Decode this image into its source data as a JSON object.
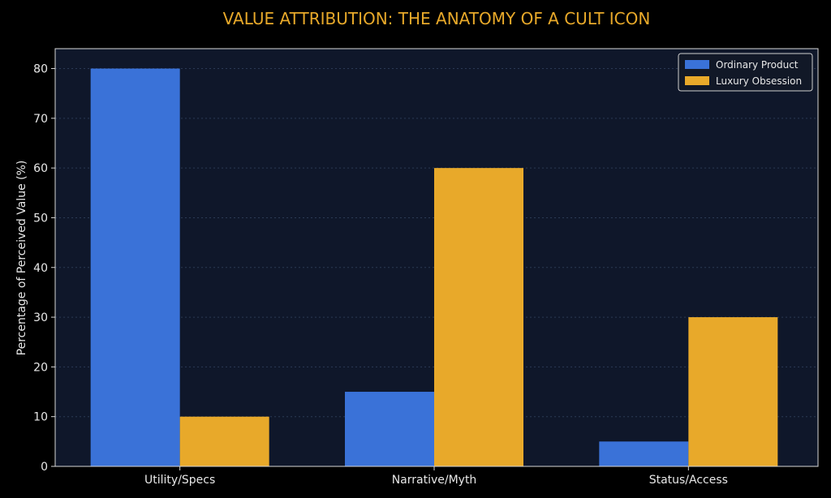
{
  "chart_data": {
    "type": "bar",
    "title": "VALUE ATTRIBUTION: THE ANATOMY OF A CULT ICON",
    "ylabel": "Percentage of Perceived Value (%)",
    "xlabel": "",
    "categories": [
      "Utility/Specs",
      "Narrative/Myth",
      "Status/Access"
    ],
    "series": [
      {
        "name": "Ordinary Product",
        "values": [
          80,
          15,
          5
        ],
        "color": "#3a72d8"
      },
      {
        "name": "Luxury Obsession",
        "values": [
          10,
          60,
          30
        ],
        "color": "#e8a92a"
      }
    ],
    "ylim": [
      0,
      84
    ],
    "yticks": [
      0,
      10,
      20,
      30,
      40,
      50,
      60,
      70,
      80
    ],
    "grid": true,
    "legend_position": "top-right",
    "colors": {
      "background": "#000000",
      "plot_background": "#0f172a",
      "title": "#e8a92a",
      "text": "#e8e8e8",
      "grid": "#2b3a55"
    }
  }
}
